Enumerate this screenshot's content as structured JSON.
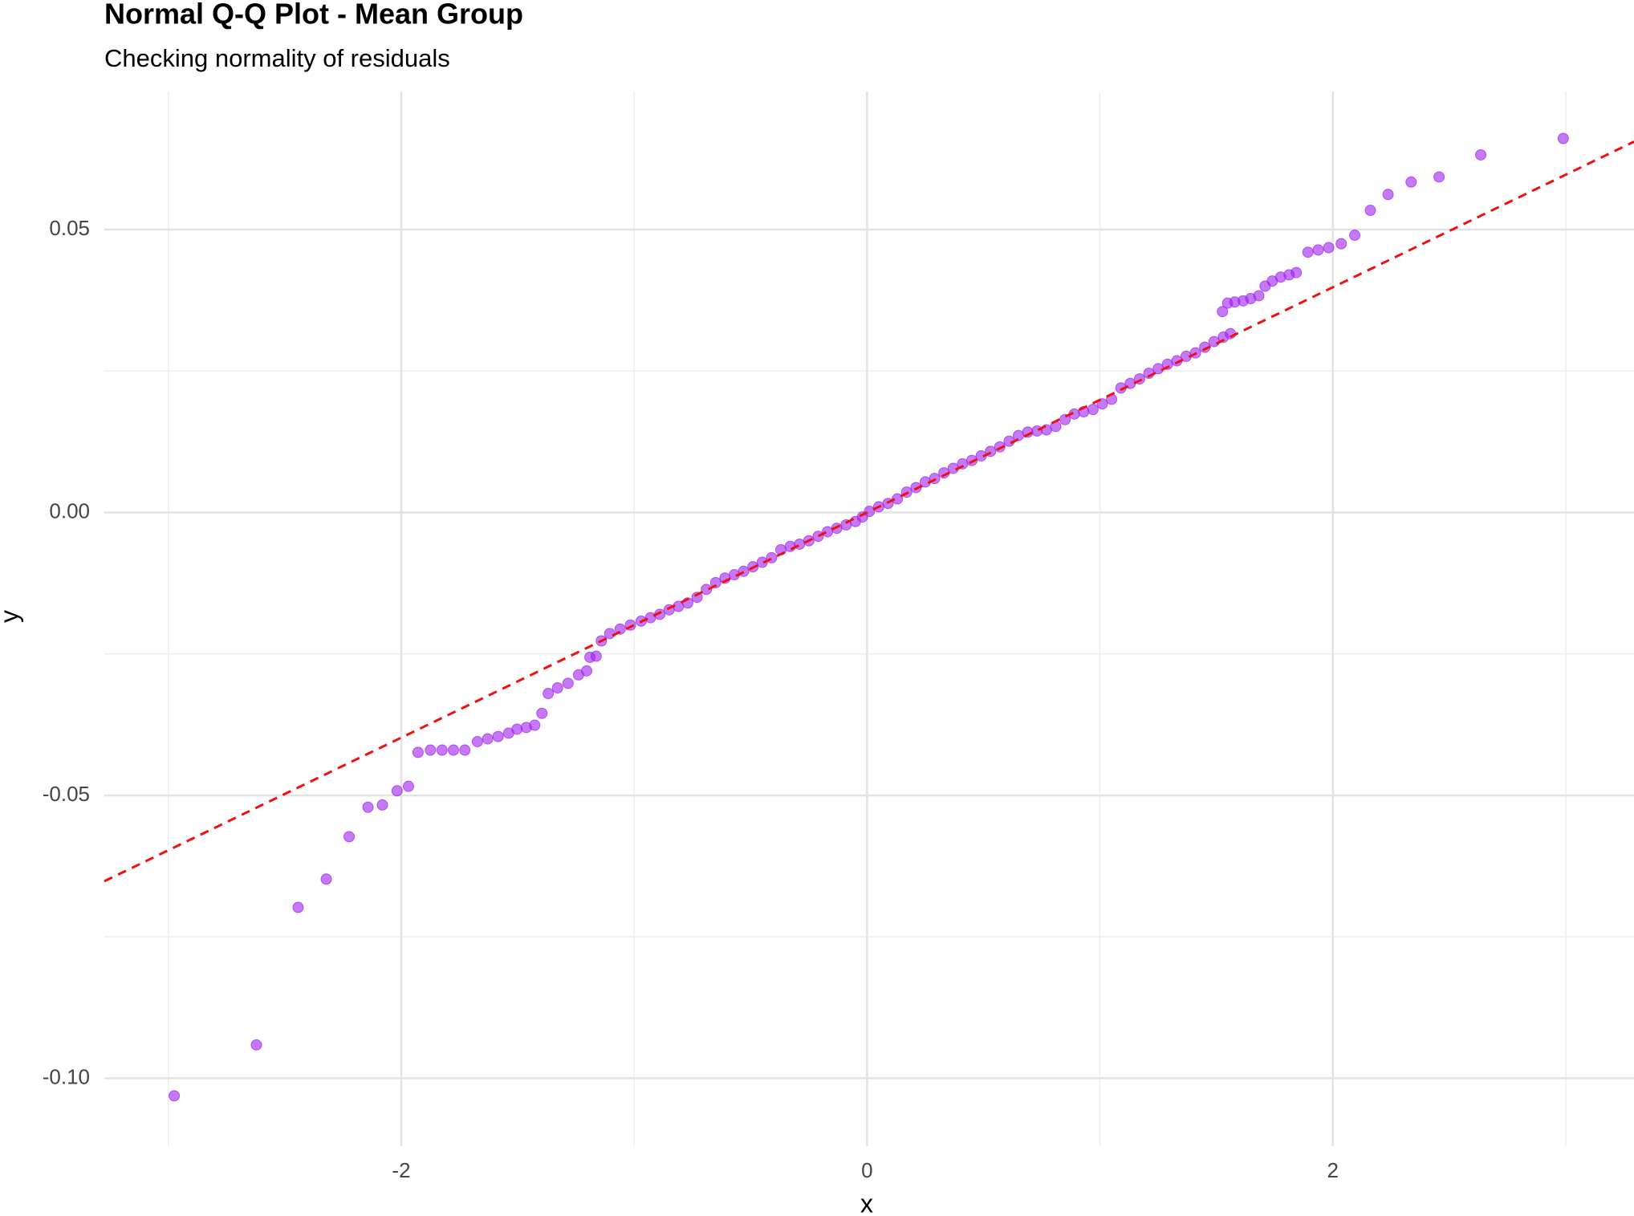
{
  "chart_data": {
    "type": "scatter",
    "title": "Normal Q-Q Plot - Mean Group",
    "subtitle": "Checking normality of residuals",
    "x_label": "x",
    "y_label": "y",
    "color": "#a020f0",
    "reference_line": {
      "intercept": 0,
      "slope": 0.0199,
      "color": "#ee1111"
    },
    "xlim": [
      -3.275,
      3.293
    ],
    "ylim": [
      -0.112,
      0.0744
    ],
    "xticks": [
      -2,
      0,
      2
    ],
    "yticks": [
      {
        "value": 0.05,
        "label": "0.05"
      },
      {
        "value": 0,
        "label": "0.00"
      },
      {
        "value": -0.05,
        "label": "-0.05"
      },
      {
        "value": -0.1,
        "label": "-0.10"
      }
    ],
    "x_minor_ticks": [
      -3,
      -1,
      1,
      3
    ],
    "y_minor_ticks": [
      0.025,
      -0.025,
      -0.075
    ],
    "grid": true,
    "x": [
      -2.975,
      -2.622,
      -2.443,
      -2.322,
      -2.224,
      -2.143,
      -2.081,
      -2.018,
      -1.969,
      -1.928,
      -1.875,
      -1.825,
      -1.776,
      -1.727,
      -1.673,
      -1.629,
      -1.584,
      -1.539,
      -1.503,
      -1.463,
      -1.427,
      -1.396,
      -1.369,
      -1.329,
      -1.284,
      -1.239,
      -1.204,
      -1.19,
      -1.163,
      -1.141,
      -1.105,
      -1.06,
      -1.016,
      -0.97,
      -0.93,
      -0.89,
      -0.85,
      -0.81,
      -0.77,
      -0.73,
      -0.69,
      -0.65,
      -0.61,
      -0.57,
      -0.53,
      -0.49,
      -0.45,
      -0.41,
      -0.37,
      -0.33,
      -0.29,
      -0.25,
      -0.21,
      -0.17,
      -0.13,
      -0.09,
      -0.05,
      -0.02,
      0.01,
      0.05,
      0.09,
      0.13,
      0.17,
      0.21,
      0.25,
      0.29,
      0.33,
      0.37,
      0.41,
      0.45,
      0.49,
      0.53,
      0.57,
      0.61,
      0.65,
      0.69,
      0.73,
      0.77,
      0.81,
      0.85,
      0.89,
      0.93,
      0.97,
      1.01,
      1.05,
      1.09,
      1.13,
      1.17,
      1.21,
      1.25,
      1.29,
      1.33,
      1.37,
      1.41,
      1.45,
      1.49,
      1.53,
      1.56,
      1.526,
      1.548,
      1.579,
      1.615,
      1.647,
      1.682,
      1.709,
      1.74,
      1.776,
      1.812,
      1.843,
      1.893,
      1.937,
      1.982,
      2.036,
      2.094,
      2.161,
      2.237,
      2.336,
      2.456,
      2.635,
      2.989
    ],
    "values": [
      -0.1031,
      -0.0941,
      -0.0698,
      -0.0648,
      -0.0573,
      -0.0521,
      -0.0517,
      -0.0492,
      -0.0484,
      -0.0424,
      -0.042,
      -0.042,
      -0.042,
      -0.042,
      -0.0405,
      -0.04,
      -0.0396,
      -0.039,
      -0.0383,
      -0.038,
      -0.0376,
      -0.0355,
      -0.032,
      -0.031,
      -0.0302,
      -0.0287,
      -0.028,
      -0.0256,
      -0.0254,
      -0.0227,
      -0.0214,
      -0.0206,
      -0.0199,
      -0.0192,
      -0.0186,
      -0.018,
      -0.0172,
      -0.0166,
      -0.016,
      -0.015,
      -0.0136,
      -0.0124,
      -0.0116,
      -0.011,
      -0.0104,
      -0.0096,
      -0.0088,
      -0.008,
      -0.0066,
      -0.006,
      -0.0056,
      -0.005,
      -0.0042,
      -0.0034,
      -0.0028,
      -0.0022,
      -0.0016,
      -0.0008,
      0.0002,
      0.001,
      0.0016,
      0.0024,
      0.0036,
      0.0044,
      0.0054,
      0.006,
      0.007,
      0.0078,
      0.0086,
      0.0092,
      0.01,
      0.0108,
      0.0116,
      0.0126,
      0.0136,
      0.0142,
      0.0144,
      0.0146,
      0.0152,
      0.0164,
      0.0174,
      0.0178,
      0.0182,
      0.0192,
      0.02,
      0.022,
      0.0228,
      0.0236,
      0.0246,
      0.0254,
      0.0262,
      0.0268,
      0.0276,
      0.0282,
      0.0292,
      0.0302,
      0.031,
      0.0316,
      0.0355,
      0.037,
      0.0372,
      0.0374,
      0.0378,
      0.0383,
      0.04,
      0.0409,
      0.0416,
      0.042,
      0.0424,
      0.046,
      0.0464,
      0.0468,
      0.0475,
      0.049,
      0.0534,
      0.0562,
      0.0584,
      0.0593,
      0.0632,
      0.0661
    ]
  }
}
